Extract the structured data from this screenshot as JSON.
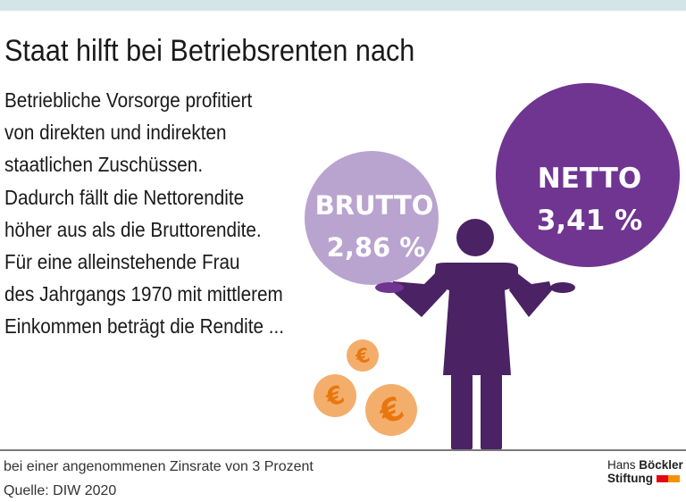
{
  "title": "Staat hilft bei Betriebsrenten nach",
  "lead_lines": [
    "Betriebliche Vorsorge profitiert",
    "von direkten und indirekten",
    "staatlichen Zuschüssen.",
    "Dadurch fällt die Nettorendite",
    "höher aus als die Bruttorendite.",
    "Für eine alleinstehende Frau",
    "des Jahrgangs 1970 mit mittlerem",
    "Einkommen beträgt die Rendite ..."
  ],
  "brutto": {
    "label": "BRUTTO",
    "value": "2,86 %",
    "color": "#b9a3cf"
  },
  "netto": {
    "label": "NETTO",
    "value": "3,41 %",
    "color": "#6f3590"
  },
  "figure_color": "#4b2264",
  "coin_color": "#f4ae6c",
  "coin_symbol": "€",
  "footnote": "bei einer angenommenen Zinsrate von 3 Prozent",
  "source": "Quelle: DIW 2020",
  "logo": {
    "line1a": "Hans ",
    "line1b": "Böckler",
    "line2": "Stiftung",
    "colors": [
      "#e30613",
      "#f39200"
    ]
  }
}
